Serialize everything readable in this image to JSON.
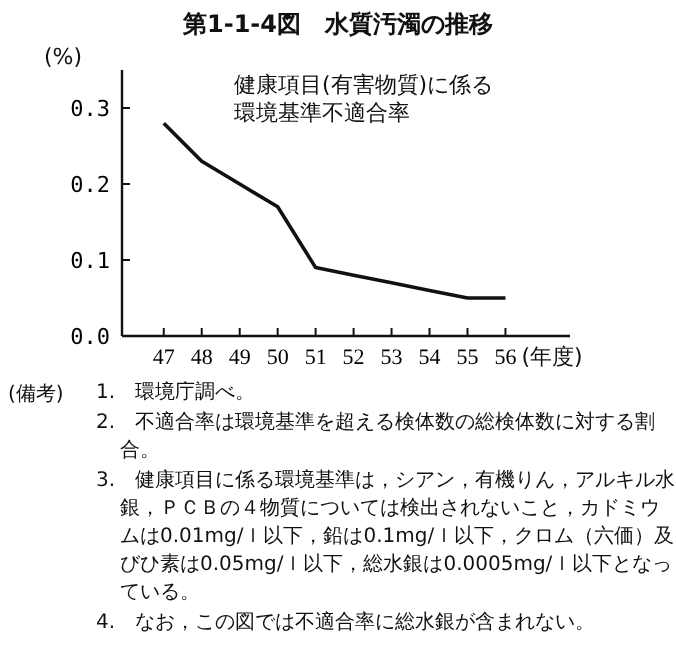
{
  "chart_data": {
    "type": "line",
    "title": "第1-1-4図　水質汚濁の推移",
    "ylabel": "(%)",
    "xlabel": "(年度)",
    "x": [
      47,
      48,
      49,
      50,
      51,
      52,
      53,
      54,
      55,
      56
    ],
    "series": [
      {
        "name": "健康項目(有害物質)に係る環境基準不適合率",
        "color": "#111111",
        "values": [
          0.28,
          0.23,
          0.2,
          0.17,
          0.09,
          0.08,
          0.07,
          0.06,
          0.05,
          0.05
        ]
      }
    ],
    "xlim": [
      45.9,
      57.7
    ],
    "xticks": [
      47,
      48,
      49,
      50,
      51,
      52,
      53,
      54,
      55,
      56
    ],
    "ylim": [
      0,
      0.35
    ],
    "yticks": [
      {
        "value": 0,
        "label": "0.0"
      },
      {
        "value": 0.1,
        "label": "0.1"
      },
      {
        "value": 0.2,
        "label": "0.2"
      },
      {
        "value": 0.3,
        "label": "0.3"
      }
    ],
    "marker": "none",
    "line_style": "solid",
    "grid": false,
    "annotations": [
      "(備考)",
      "1.　環境庁調べ。",
      "2.　不適合率は環境基準を超える検体数の総検体数に対する割合。",
      "3.　健康項目に係る環境基準は，シアン，有機りん，アルキル水銀，ＰＣＢの４物質については検出されないこと，カドミウムは0.01mg/ｌ以下，鉛は0.1mg/ｌ以下，クロム（六価）及びひ素は0.05mg/ｌ以下，総水銀は0.0005mg/ｌ以下となっている。",
      "4.　なお，この図では不適合率に総水銀が含まれない。"
    ]
  }
}
